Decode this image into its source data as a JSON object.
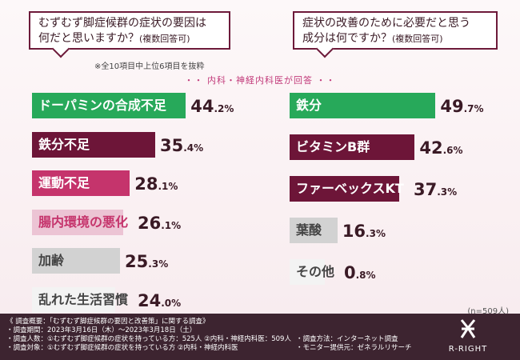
{
  "question_left": {
    "line1": "むずむず脚症候群の症状の要因は",
    "line2": "何だと思いますか？",
    "note": "(複数回答可)"
  },
  "question_right": {
    "line1": "症状の改善のために必要だと思う",
    "line2": "成分は何ですか？",
    "note": "(複数回答可)"
  },
  "top_note": "※全10項目中上位6項目を抜粋",
  "subtitle": "・・ 内科・神経内科医が回答 ・・",
  "n_note": "(n=509人)",
  "colors": {
    "green": "#27a95a",
    "maroon": "#6d1538",
    "pink": "#c5346c",
    "pink_light": "#ecc4d4",
    "gray": "#d2d2d2",
    "gray_light": "#f3f3f3"
  },
  "chart_data": [
    {
      "type": "bar",
      "categories": [
        "ドーパミンの合成不足",
        "鉄分不足",
        "運動不足",
        "腸内環境の悪化",
        "加齢",
        "乱れた生活習慣"
      ],
      "values": [
        44.2,
        35.4,
        28.1,
        26.1,
        25.3,
        24.0
      ],
      "value_labels": [
        {
          "int": "44",
          "dec": ".2%"
        },
        {
          "int": "35",
          "dec": ".4%"
        },
        {
          "int": "28",
          "dec": ".1%"
        },
        {
          "int": "26",
          "dec": ".1%"
        },
        {
          "int": "25",
          "dec": ".3%"
        },
        {
          "int": "24",
          "dec": ".0%"
        }
      ],
      "styles": [
        "green",
        "maroon",
        "pink",
        "pink_light",
        "gray",
        "gray_light"
      ]
    },
    {
      "type": "bar",
      "categories": [
        "鉄分",
        "ビタミンB群",
        "ファーベックスKT",
        "葉酸",
        "その他"
      ],
      "values": [
        49.7,
        42.6,
        37.3,
        16.3,
        0.8
      ],
      "value_labels": [
        {
          "int": "49",
          "dec": ".7%"
        },
        {
          "int": "42",
          "dec": ".6%"
        },
        {
          "int": "37",
          "dec": ".3%"
        },
        {
          "int": "16",
          "dec": ".3%"
        },
        {
          "int": "0",
          "dec": ".8%"
        }
      ],
      "styles": [
        "green",
        "maroon",
        "maroon",
        "gray",
        "gray_light"
      ]
    }
  ],
  "footer": {
    "title": "《 調査概要：「むずむず脚症候群の要因と改善策」に関する調査》",
    "period": "・調査期間：2023年3月16日（木）～2023年3月18日（土）",
    "people": "・調査人数：①むずむず脚症候群の症状を持っている方：525人 ②内科・神経内科医：509人",
    "target": "・調査対象：①むずむず脚症候群の症状を持っている方 ②内科・神経内科医",
    "method": "・調査方法：インターネット調査",
    "provider": "・モニター提供元：ゼネラルリサーチ",
    "logo_text": "R-RIGHT"
  }
}
